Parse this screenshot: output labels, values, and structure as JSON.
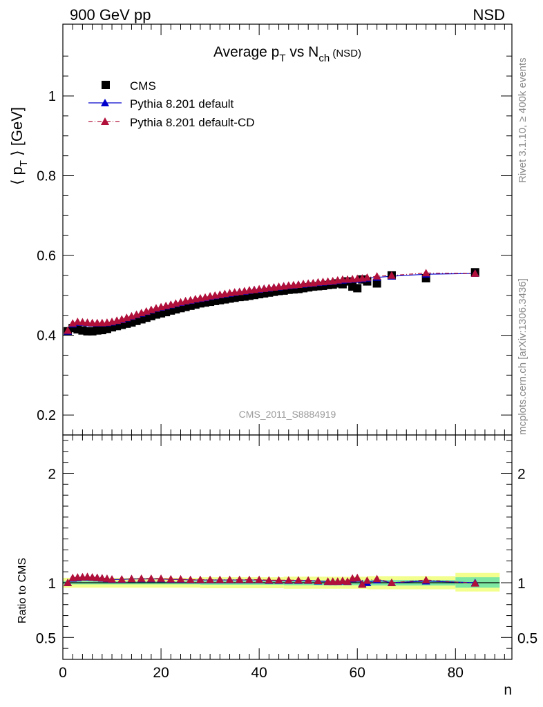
{
  "header": {
    "energy_label": "900 GeV pp",
    "process_label": "NSD"
  },
  "side_labels": {
    "rivet_info": "Rivet 3.1.10, ≥ 400k events",
    "source_info": "mcplots.cern.ch [arXiv:1306.3436]"
  },
  "chart_data": [
    {
      "type": "scatter",
      "panel": "main",
      "title": {
        "main": "Average p",
        "sub1": "T",
        "mid": " vs N",
        "sub2": "ch",
        "tail": " (NSD)"
      },
      "ylabel": {
        "main": "⟨ p",
        "sub": "T",
        "tail": " ⟩ [GeV]"
      },
      "analysis_label": "CMS_2011_S8884919",
      "xlim": [
        0,
        91.5
      ],
      "ylim": [
        0.15,
        1.18
      ],
      "y_ticks": [
        0.2,
        0.4,
        0.6,
        0.8,
        1
      ],
      "y_tick_labels": [
        "0.2",
        "0.4",
        "0.6",
        "0.8",
        "1"
      ],
      "legend": {
        "position": "top-left",
        "entries": [
          "CMS",
          "Pythia 8.201 default",
          "Pythia 8.201 default-CD"
        ]
      },
      "series": [
        {
          "name": "CMS",
          "marker": "square",
          "color": "#000000",
          "x": [
            1,
            2,
            3,
            4,
            5,
            6,
            7,
            8,
            9,
            10,
            11,
            12,
            13,
            14,
            15,
            16,
            17,
            18,
            19,
            20,
            21,
            22,
            23,
            24,
            25,
            26,
            27,
            28,
            29,
            30,
            31,
            32,
            33,
            34,
            35,
            36,
            37,
            38,
            39,
            40,
            41,
            42,
            43,
            44,
            45,
            46,
            47,
            48,
            49,
            50,
            51,
            52,
            53,
            54,
            55,
            56,
            57,
            58,
            59,
            60,
            61,
            62,
            64,
            67,
            74,
            84
          ],
          "y": [
            0.41,
            0.418,
            0.415,
            0.412,
            0.41,
            0.41,
            0.412,
            0.413,
            0.416,
            0.42,
            0.423,
            0.426,
            0.429,
            0.432,
            0.436,
            0.44,
            0.444,
            0.448,
            0.452,
            0.455,
            0.458,
            0.462,
            0.465,
            0.468,
            0.471,
            0.474,
            0.477,
            0.48,
            0.482,
            0.484,
            0.486,
            0.488,
            0.49,
            0.492,
            0.494,
            0.496,
            0.497,
            0.499,
            0.501,
            0.503,
            0.505,
            0.507,
            0.509,
            0.511,
            0.512,
            0.514,
            0.515,
            0.516,
            0.518,
            0.52,
            0.522,
            0.523,
            0.524,
            0.526,
            0.527,
            0.53,
            0.528,
            0.535,
            0.522,
            0.518,
            0.54,
            0.535,
            0.53,
            0.55,
            0.543,
            0.558
          ]
        },
        {
          "name": "Pythia 8.201 default",
          "marker": "triangle",
          "line": "solid",
          "color": "#0000cc",
          "x": [
            1,
            2,
            3,
            4,
            5,
            6,
            7,
            8,
            9,
            10,
            11,
            12,
            13,
            14,
            15,
            16,
            17,
            18,
            19,
            20,
            21,
            22,
            23,
            24,
            25,
            26,
            27,
            28,
            29,
            30,
            31,
            32,
            33,
            34,
            35,
            36,
            37,
            38,
            39,
            40,
            41,
            42,
            43,
            44,
            45,
            46,
            47,
            48,
            49,
            50,
            51,
            52,
            53,
            54,
            55,
            56,
            57,
            58,
            59,
            60,
            61,
            62,
            64,
            67,
            74,
            84
          ],
          "y": [
            0.41,
            0.428,
            0.432,
            0.432,
            0.431,
            0.43,
            0.43,
            0.43,
            0.431,
            0.433,
            0.436,
            0.439,
            0.443,
            0.447,
            0.451,
            0.455,
            0.459,
            0.463,
            0.467,
            0.47,
            0.473,
            0.476,
            0.479,
            0.482,
            0.485,
            0.487,
            0.49,
            0.492,
            0.494,
            0.497,
            0.499,
            0.501,
            0.503,
            0.505,
            0.507,
            0.509,
            0.51,
            0.512,
            0.514,
            0.515,
            0.517,
            0.518,
            0.52,
            0.521,
            0.523,
            0.524,
            0.525,
            0.527,
            0.528,
            0.529,
            0.53,
            0.532,
            0.533,
            0.534,
            0.535,
            0.537,
            0.538,
            0.539,
            0.54,
            0.54,
            0.541,
            0.543,
            0.545,
            0.548,
            0.553,
            0.555
          ]
        },
        {
          "name": "Pythia 8.201 default-CD",
          "marker": "triangle",
          "line": "dash-dot",
          "color": "#b0103a",
          "x": [
            1,
            2,
            3,
            4,
            5,
            6,
            7,
            8,
            9,
            10,
            11,
            12,
            13,
            14,
            15,
            16,
            17,
            18,
            19,
            20,
            21,
            22,
            23,
            24,
            25,
            26,
            27,
            28,
            29,
            30,
            31,
            32,
            33,
            34,
            35,
            36,
            37,
            38,
            39,
            40,
            41,
            42,
            43,
            44,
            45,
            46,
            47,
            48,
            49,
            50,
            51,
            52,
            53,
            54,
            55,
            56,
            57,
            58,
            59,
            60,
            61,
            62,
            64,
            67,
            74,
            84
          ],
          "y": [
            0.412,
            0.43,
            0.434,
            0.433,
            0.432,
            0.431,
            0.431,
            0.431,
            0.432,
            0.434,
            0.437,
            0.44,
            0.444,
            0.448,
            0.452,
            0.456,
            0.46,
            0.464,
            0.468,
            0.471,
            0.474,
            0.477,
            0.48,
            0.483,
            0.486,
            0.488,
            0.491,
            0.493,
            0.495,
            0.498,
            0.5,
            0.502,
            0.504,
            0.506,
            0.508,
            0.509,
            0.511,
            0.513,
            0.514,
            0.516,
            0.517,
            0.519,
            0.52,
            0.522,
            0.523,
            0.525,
            0.526,
            0.527,
            0.529,
            0.53,
            0.531,
            0.533,
            0.534,
            0.535,
            0.536,
            0.538,
            0.54,
            0.54,
            0.541,
            0.542,
            0.543,
            0.545,
            0.548,
            0.55,
            0.556,
            0.555
          ]
        }
      ]
    },
    {
      "type": "scatter",
      "panel": "ratio",
      "ylabel": "Ratio to CMS",
      "xlabel": "n",
      "xlim": [
        0,
        91.5
      ],
      "ylim": [
        0.3,
        2.35
      ],
      "y_ticks": [
        0.5,
        1,
        2
      ],
      "y_tick_labels": [
        "0.5",
        "1",
        "2"
      ],
      "x_ticks": [
        0,
        20,
        40,
        60,
        80
      ],
      "x_tick_labels": [
        "0",
        "20",
        "40",
        "60",
        "80"
      ],
      "bands": {
        "inner_color": "#7ee8a3",
        "outer_color": "#f2ff8c",
        "segments": [
          {
            "x0": 0,
            "x1": 28,
            "inner": [
              0.985,
              1.015
            ],
            "outer": [
              0.955,
              1.045
            ]
          },
          {
            "x0": 28,
            "x1": 45,
            "inner": [
              0.982,
              1.018
            ],
            "outer": [
              0.95,
              1.05
            ]
          },
          {
            "x0": 45,
            "x1": 62,
            "inner": [
              0.978,
              1.022
            ],
            "outer": [
              0.945,
              1.055
            ]
          },
          {
            "x0": 62,
            "x1": 80,
            "inner": [
              0.975,
              1.025
            ],
            "outer": [
              0.94,
              1.06
            ]
          },
          {
            "x0": 80,
            "x1": 89,
            "inner": [
              0.955,
              1.05
            ],
            "outer": [
              0.92,
              1.09
            ]
          }
        ]
      },
      "series": [
        {
          "name": "Pythia 8.201 default",
          "marker": "triangle",
          "line": "solid",
          "color": "#0000cc",
          "x": [
            1,
            2,
            3,
            4,
            5,
            6,
            7,
            8,
            9,
            10,
            12,
            14,
            16,
            18,
            20,
            22,
            24,
            26,
            28,
            30,
            32,
            34,
            36,
            38,
            40,
            42,
            44,
            46,
            48,
            50,
            52,
            54,
            55,
            56,
            57,
            58,
            59,
            60,
            61,
            62,
            64,
            67,
            74,
            84
          ],
          "y": [
            1.0,
            1.04,
            1.045,
            1.05,
            1.05,
            1.048,
            1.045,
            1.04,
            1.036,
            1.03,
            1.03,
            1.035,
            1.035,
            1.035,
            1.035,
            1.03,
            1.03,
            1.025,
            1.025,
            1.025,
            1.025,
            1.025,
            1.025,
            1.025,
            1.025,
            1.02,
            1.02,
            1.02,
            1.02,
            1.02,
            1.015,
            1.01,
            1.01,
            1.01,
            1.015,
            1.01,
            1.035,
            1.04,
            0.99,
            1.0,
            1.025,
            1.0,
            1.015,
            1.0
          ]
        },
        {
          "name": "Pythia 8.201 default-CD",
          "marker": "triangle",
          "line": "dash-dot",
          "color": "#b0103a",
          "x": [
            1,
            2,
            3,
            4,
            5,
            6,
            7,
            8,
            9,
            10,
            12,
            14,
            16,
            18,
            20,
            22,
            24,
            26,
            28,
            30,
            32,
            34,
            36,
            38,
            40,
            42,
            44,
            46,
            48,
            50,
            52,
            54,
            55,
            56,
            57,
            58,
            59,
            60,
            61,
            62,
            64,
            67,
            74,
            84
          ],
          "y": [
            1.0,
            1.045,
            1.05,
            1.052,
            1.055,
            1.05,
            1.047,
            1.042,
            1.038,
            1.032,
            1.032,
            1.036,
            1.038,
            1.038,
            1.038,
            1.033,
            1.033,
            1.028,
            1.028,
            1.028,
            1.028,
            1.028,
            1.028,
            1.028,
            1.028,
            1.023,
            1.023,
            1.023,
            1.023,
            1.022,
            1.018,
            1.012,
            1.012,
            1.012,
            1.018,
            1.012,
            1.04,
            1.045,
            0.985,
            1.02,
            1.035,
            1.0,
            1.025,
            0.995
          ]
        }
      ]
    }
  ]
}
